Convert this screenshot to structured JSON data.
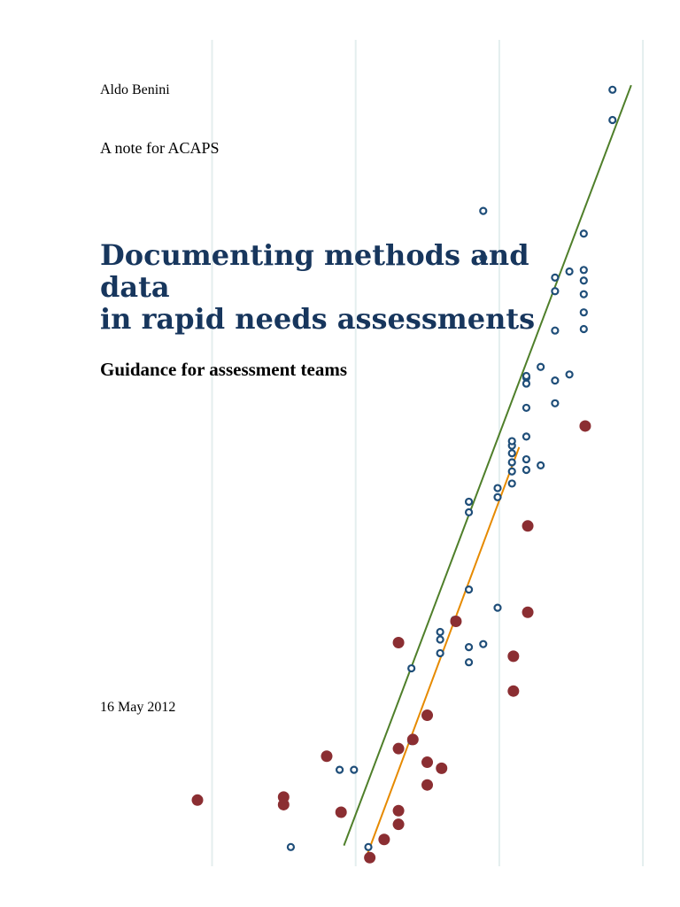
{
  "document": {
    "author": "Aldo Benini",
    "note": "A note for ACAPS",
    "title_line1": "Documenting methods and data",
    "title_line2": "in rapid needs assessments",
    "subtitle": "Guidance for assessment teams",
    "date": "16 May 2012"
  },
  "colors": {
    "title": "#17365d",
    "hollow_markers": "#1f4e79",
    "filled_markers": "#8b2e32",
    "fit_line_hollow": "#4f7f2a",
    "fit_line_filled": "#e68a00",
    "gridlines": "#e4eeee"
  },
  "chart_data": {
    "type": "scatter",
    "title": "",
    "xlabel": "",
    "ylabel": "",
    "grid": "vertical lines only",
    "xlim": [
      0,
      30
    ],
    "ylim": [
      0,
      55
    ],
    "series": [
      {
        "marker": "hollow circle",
        "color": "#1f4e79",
        "points": [
          [
            6.5,
            0.8
          ],
          [
            9.9,
            5.9
          ],
          [
            10.9,
            5.9
          ],
          [
            11.9,
            0.8
          ],
          [
            13.9,
            7.3
          ],
          [
            14.9,
            7.8
          ],
          [
            14.9,
            12.6
          ],
          [
            16.9,
            13.6
          ],
          [
            16.9,
            14.5
          ],
          [
            16.9,
            15.0
          ],
          [
            17.9,
            15.8
          ],
          [
            18.9,
            13.0
          ],
          [
            18.9,
            14.0
          ],
          [
            18.9,
            17.8
          ],
          [
            18.9,
            22.9
          ],
          [
            18.9,
            23.6
          ],
          [
            19.9,
            14.2
          ],
          [
            19.9,
            39.7
          ],
          [
            19.9,
            42.8
          ],
          [
            20.9,
            16.6
          ],
          [
            20.9,
            23.9
          ],
          [
            20.9,
            24.5
          ],
          [
            21.9,
            24.8
          ],
          [
            21.9,
            25.6
          ],
          [
            21.9,
            26.2
          ],
          [
            21.9,
            26.8
          ],
          [
            21.9,
            27.3
          ],
          [
            21.9,
            27.6
          ],
          [
            22.9,
            25.7
          ],
          [
            22.9,
            26.4
          ],
          [
            22.9,
            27.9
          ],
          [
            22.9,
            29.8
          ],
          [
            22.9,
            31.4
          ],
          [
            22.9,
            31.8
          ],
          [
            22.9,
            31.9
          ],
          [
            23.9,
            26.0
          ],
          [
            23.9,
            32.5
          ],
          [
            24.9,
            30.1
          ],
          [
            24.9,
            31.6
          ],
          [
            24.9,
            34.9
          ],
          [
            24.9,
            37.5
          ],
          [
            24.9,
            38.4
          ],
          [
            25.9,
            32.0
          ],
          [
            25.9,
            38.8
          ],
          [
            26.9,
            35.0
          ],
          [
            26.9,
            36.1
          ],
          [
            26.9,
            37.3
          ],
          [
            26.9,
            38.2
          ],
          [
            26.9,
            38.9
          ],
          [
            26.9,
            41.3
          ],
          [
            28.9,
            48.8
          ],
          [
            28.9,
            50.8
          ]
        ]
      },
      {
        "marker": "filled circle",
        "color": "#8b2e32",
        "points": [
          [
            0.0,
            3.9
          ],
          [
            6.0,
            3.6
          ],
          [
            6.0,
            4.1
          ],
          [
            9.0,
            6.8
          ],
          [
            10.0,
            3.1
          ],
          [
            12.0,
            0.1
          ],
          [
            13.0,
            1.3
          ],
          [
            14.0,
            2.3
          ],
          [
            14.0,
            3.2
          ],
          [
            14.0,
            7.3
          ],
          [
            14.0,
            14.3
          ],
          [
            15.0,
            7.9
          ],
          [
            16.0,
            4.9
          ],
          [
            16.0,
            6.4
          ],
          [
            16.0,
            9.5
          ],
          [
            17.0,
            6.0
          ],
          [
            18.0,
            15.7
          ],
          [
            22.0,
            11.1
          ],
          [
            22.0,
            13.4
          ],
          [
            23.0,
            16.3
          ],
          [
            23.0,
            22.0
          ],
          [
            27.0,
            28.6
          ]
        ]
      }
    ],
    "fit_lines": [
      {
        "for_series": 0,
        "color": "#4f7f2a",
        "from": [
          10.2,
          0.9
        ],
        "to": [
          30.2,
          51.1
        ]
      },
      {
        "for_series": 1,
        "color": "#e68a00",
        "from": [
          11.7,
          0.0
        ],
        "to": [
          22.4,
          27.2
        ]
      }
    ],
    "x_gridlines": [
      0,
      10,
      20,
      30
    ]
  }
}
